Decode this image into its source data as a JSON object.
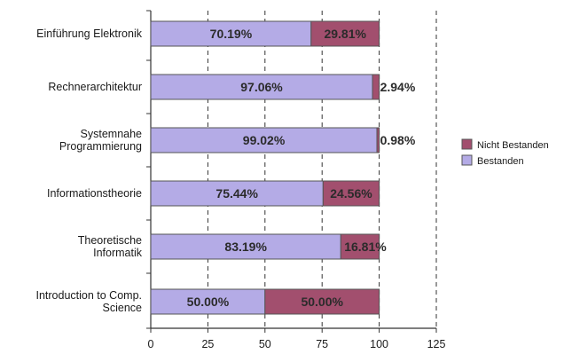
{
  "chart_data": {
    "type": "bar",
    "orientation": "horizontal",
    "stacked": true,
    "categories": [
      [
        "Einführung Elektronik"
      ],
      [
        "Rechnerarchitektur"
      ],
      [
        "Systemnahe",
        "Programmierung"
      ],
      [
        "Informationstheorie"
      ],
      [
        "Theoretische",
        "Informatik"
      ],
      [
        "Introduction to Comp.",
        "Science"
      ]
    ],
    "series": [
      {
        "name": "Bestanden",
        "color": "#b4abe6",
        "values": [
          70.19,
          97.06,
          99.02,
          75.44,
          83.19,
          50.0
        ],
        "labels": [
          "70.19%",
          "97.06%",
          "99.02%",
          "75.44%",
          "83.19%",
          "50.00%"
        ]
      },
      {
        "name": "Nicht Bestanden",
        "color": "#a24f6e",
        "values": [
          29.81,
          2.94,
          0.98,
          24.56,
          16.81,
          50.0
        ],
        "labels": [
          "29.81%",
          "2.94%",
          "0.98%",
          "24.56%",
          "16.81%",
          "50.00%"
        ]
      }
    ],
    "xlim": [
      0,
      125
    ],
    "xticks": [
      "0",
      "25",
      "50",
      "75",
      "100",
      "125"
    ],
    "grid": "vertical dashed",
    "legend_position": "right",
    "legend_order": [
      "Nicht Bestanden",
      "Bestanden"
    ],
    "title": "",
    "xlabel": "",
    "ylabel": ""
  }
}
